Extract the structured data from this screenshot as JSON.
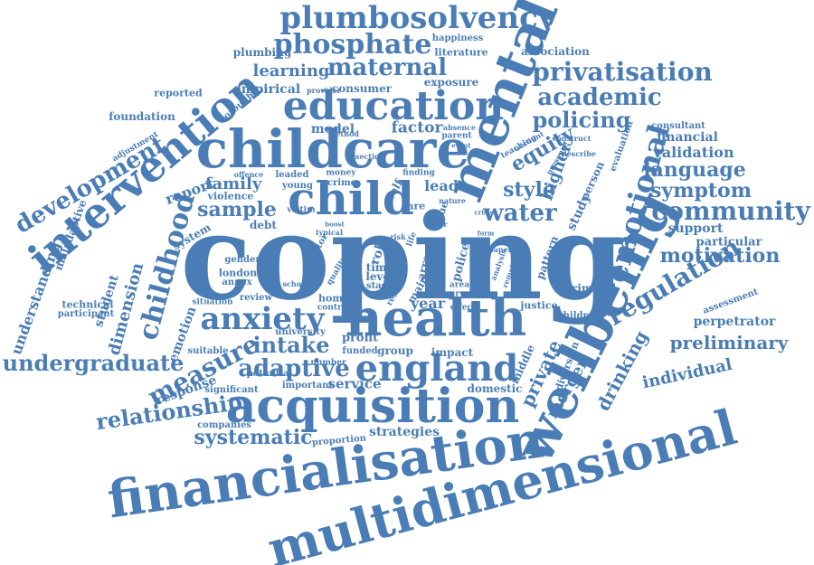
{
  "cloud": {
    "color": "#4a7db5",
    "words": {
      "coping": "coping",
      "health": "health",
      "wellbeing": "wellbeing",
      "financialisation": "financialisation",
      "multidimensional": "multidimensional",
      "acquisition": "acquisition",
      "childcare": "childcare",
      "mental": "mental",
      "child": "child",
      "intervention": "intervention",
      "education": "education",
      "plumbosolvency": "plumbosolvency",
      "england": "england",
      "anxiety": "anxiety",
      "emotional": "emotional",
      "phosphate": "phosphate",
      "maternal": "maternal",
      "privatisation": "privatisation",
      "academic": "academic",
      "policing": "policing",
      "community": "community",
      "water": "water",
      "regulation": "regulation",
      "childhood": "childhood",
      "measure": "measure",
      "adaptive": "adaptive",
      "relationship": "relationship",
      "undergraduate": "undergraduate",
      "development": "development",
      "systematic": "systematic",
      "sample": "sample",
      "intake": "intake",
      "language": "language",
      "symptom": "symptom",
      "preliminary": "preliminary",
      "motivation": "motivation",
      "individual": "individual",
      "drinking": "drinking",
      "private": "private",
      "merger": "merger",
      "equity": "equity",
      "style": "style",
      "higher": "higher",
      "family": "family",
      "report": "report",
      "dimension": "dimension",
      "learning": "learning",
      "factor": "factor",
      "lead": "lead",
      "service": "service",
      "year": "year",
      "strategies": "strategies",
      "understanding": "understanding",
      "student": "student",
      "emotion": "emotion",
      "response": "response",
      "validation": "validation",
      "financial": "financial",
      "perpetrator": "perpetrator",
      "support": "support",
      "particular": "particular",
      "model": "model",
      "empirical": "empirical",
      "consumer": "consumer",
      "exposure": "exposure",
      "plumbing": "plumbing",
      "literature": "literature",
      "association": "association",
      "happiness": "happiness",
      "reported": "reported",
      "foundation": "foundation",
      "maladaptive": "maladaptive",
      "system": "system",
      "debt": "debt",
      "violence": "violence",
      "london": "london",
      "annex": "annex",
      "gender": "gender",
      "technical": "technical",
      "participant": "participant",
      "suitable": "suitable",
      "significant": "significant",
      "companies": "companies",
      "proportion": "proportion",
      "profit": "profit",
      "group": "group",
      "impact": "impact",
      "domestic": "domestic",
      "middle": "middle",
      "diversion": "diversion",
      "criminal": "criminal",
      "pattern": "pattern",
      "justice": "justice",
      "police": "police",
      "children": "children",
      "assessment": "assessment",
      "study": "study",
      "person": "person",
      "consultant": "consultant",
      "evaluation": "evaluation",
      "potential": "potential",
      "important": "important",
      "university": "university",
      "number": "number",
      "funded": "funded",
      "home": "home",
      "control": "control",
      "review": "review",
      "situation": "situation",
      "adjustment": "adjustment",
      "borough": "borough",
      "method": "method",
      "provider": "provider",
      "absence": "absence",
      "parent": "parent",
      "event": "event",
      "teaching": "teaching",
      "account": "account",
      "construct": "construct",
      "describe": "describe",
      "presence": "presence",
      "offence": "offence",
      "leaded": "leaded",
      "young": "young",
      "crime": "crime",
      "money": "money",
      "section": "section",
      "finding": "finding",
      "self": "self",
      "victim": "victim",
      "typical": "typical",
      "sector": "sector",
      "primary": "primary",
      "quality": "quality",
      "school": "school",
      "role": "role",
      "time": "time",
      "level": "level",
      "stage": "stage",
      "main": "main",
      "result": "result",
      "area": "area",
      "survey": "survey",
      "effect": "effect",
      "arrest": "arrest",
      "issue": "issue",
      "care": "care",
      "nature": "nature",
      "paper": "paper",
      "analysis": "analysis",
      "remote": "remote",
      "offer": "offer",
      "form": "form",
      "crisis": "crisis",
      "boost": "boost",
      "life": "life",
      "risk": "risk"
    }
  }
}
